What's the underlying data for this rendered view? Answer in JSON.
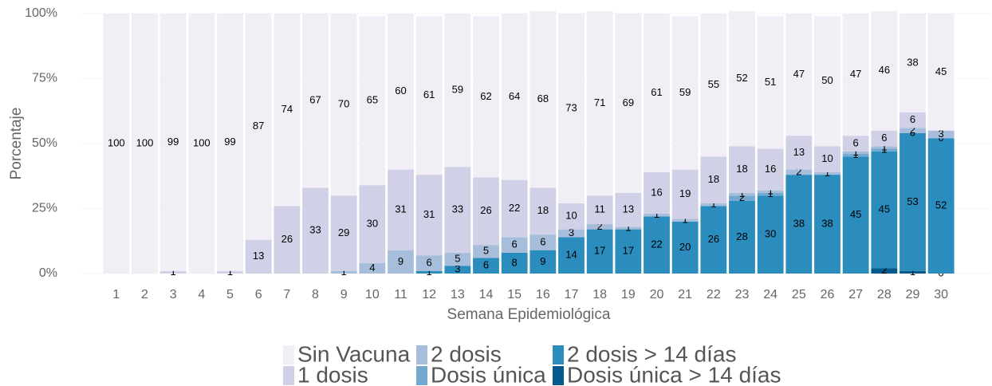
{
  "chart_data": {
    "type": "stacked_bar",
    "xlabel": "Semana Epidemiológica",
    "ylabel": "Porcentaje",
    "categories": [
      "1",
      "2",
      "3",
      "4",
      "5",
      "6",
      "7",
      "8",
      "9",
      "10",
      "11",
      "12",
      "13",
      "14",
      "15",
      "16",
      "17",
      "18",
      "19",
      "20",
      "21",
      "22",
      "23",
      "24",
      "25",
      "26",
      "27",
      "28",
      "29",
      "30"
    ],
    "series": [
      {
        "name": "Dosis única > 14 días",
        "color": "#045a8d",
        "values": [
          null,
          null,
          null,
          null,
          null,
          null,
          null,
          null,
          null,
          null,
          null,
          null,
          null,
          null,
          null,
          null,
          null,
          null,
          null,
          null,
          null,
          null,
          null,
          null,
          null,
          null,
          null,
          2,
          1,
          0
        ]
      },
      {
        "name": "2 dosis > 14 días",
        "color": "#2b8cbe",
        "values": [
          null,
          null,
          null,
          null,
          null,
          null,
          null,
          null,
          null,
          null,
          null,
          1,
          3,
          6,
          8,
          9,
          14,
          17,
          17,
          22,
          20,
          26,
          28,
          30,
          38,
          38,
          45,
          45,
          53,
          52
        ]
      },
      {
        "name": "Dosis única",
        "color": "#74a9cf",
        "values": [
          null,
          null,
          null,
          null,
          null,
          null,
          null,
          null,
          null,
          null,
          null,
          null,
          null,
          null,
          null,
          null,
          null,
          null,
          null,
          null,
          null,
          null,
          2,
          1,
          null,
          null,
          1,
          1,
          0,
          0
        ]
      },
      {
        "name": "2 dosis",
        "color": "#a6bddb",
        "values": [
          null,
          null,
          null,
          null,
          null,
          null,
          null,
          null,
          1,
          4,
          9,
          6,
          5,
          5,
          6,
          6,
          3,
          2,
          1,
          1,
          1,
          1,
          1,
          1,
          2,
          1,
          1,
          1,
          2,
          3
        ]
      },
      {
        "name": "1 dosis",
        "color": "#d0d1e6",
        "values": [
          null,
          null,
          1,
          null,
          1,
          13,
          26,
          33,
          29,
          30,
          31,
          31,
          33,
          26,
          22,
          18,
          10,
          11,
          13,
          16,
          19,
          18,
          18,
          16,
          13,
          10,
          6,
          6,
          6,
          null
        ]
      },
      {
        "name": "Sin Vacuna",
        "color": "#f1eef6",
        "values": [
          100,
          100,
          99,
          100,
          99,
          87,
          74,
          67,
          70,
          65,
          60,
          61,
          59,
          62,
          64,
          68,
          73,
          71,
          69,
          61,
          59,
          55,
          52,
          51,
          47,
          50,
          47,
          46,
          38,
          45
        ]
      }
    ],
    "ylim": [
      0,
      100
    ],
    "yticks": [
      {
        "value": 0,
        "label": "0%"
      },
      {
        "value": 25,
        "label": "25%"
      },
      {
        "value": 50,
        "label": "50%"
      },
      {
        "value": 75,
        "label": "75%"
      },
      {
        "value": 100,
        "label": "100%"
      }
    ],
    "grid": true
  }
}
